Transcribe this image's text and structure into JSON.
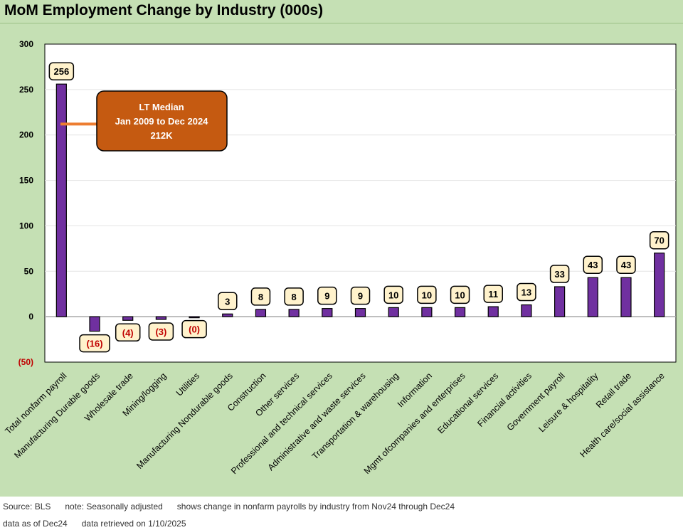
{
  "title": "MoM Employment Change by Industry (000s)",
  "chart_data": {
    "type": "bar",
    "title": "MoM Employment Change by Industry (000s)",
    "xlabel": "",
    "ylabel": "",
    "ylim": [
      -50,
      300
    ],
    "yticks": [
      300,
      250,
      200,
      150,
      100,
      50,
      0,
      -50
    ],
    "ytick_labels": [
      "300",
      "250",
      "200",
      "150",
      "100",
      "50",
      "0",
      "(50)"
    ],
    "grid": true,
    "categories": [
      "Total nonfarm payroll",
      "Manufacturing Durable goods",
      "Wholesale trade",
      "Mining/logging",
      "Utilities",
      "Manufacturing Nondurable goods",
      "Construction",
      "Other services",
      "Professional and technical services",
      "Administrative and waste services",
      "Transportation & warehousing",
      "Information",
      "Mgmt ofcompanies and enterprises",
      "Educational services",
      "Financial activities",
      "Government payroll",
      "Leisure & hospitality",
      "Retail trade",
      "Health care/social assistance"
    ],
    "values": [
      256,
      -16,
      -4,
      -3,
      -0.4,
      3,
      8,
      8,
      9,
      9,
      10,
      10,
      10,
      11,
      13,
      33,
      43,
      43,
      70
    ],
    "data_labels": [
      "256",
      "(16)",
      "(4)",
      "(3)",
      "(0)",
      "3",
      "8",
      "8",
      "9",
      "9",
      "10",
      "10",
      "10",
      "11",
      "13",
      "33",
      "43",
      "43",
      "70"
    ],
    "bar_color": "#7030a0",
    "positive_label_color": "#000000",
    "negative_label_color": "#c00000",
    "label_box_color": "#fff2cc",
    "annotation": {
      "lines": [
        "LT Median",
        "Jan 2009 to Dec 2024",
        "212K"
      ],
      "value": 212,
      "fill_color": "#c55a11",
      "line_color": "#ed7d31",
      "text_color": "#ffffff"
    }
  },
  "footer": {
    "line1": "Source: BLS      note: Seasonally adjusted      shows change in nonfarm payrolls by industry from Nov24 through Dec24",
    "line2": "data as of Dec24      data retrieved on 1/10/2025"
  }
}
